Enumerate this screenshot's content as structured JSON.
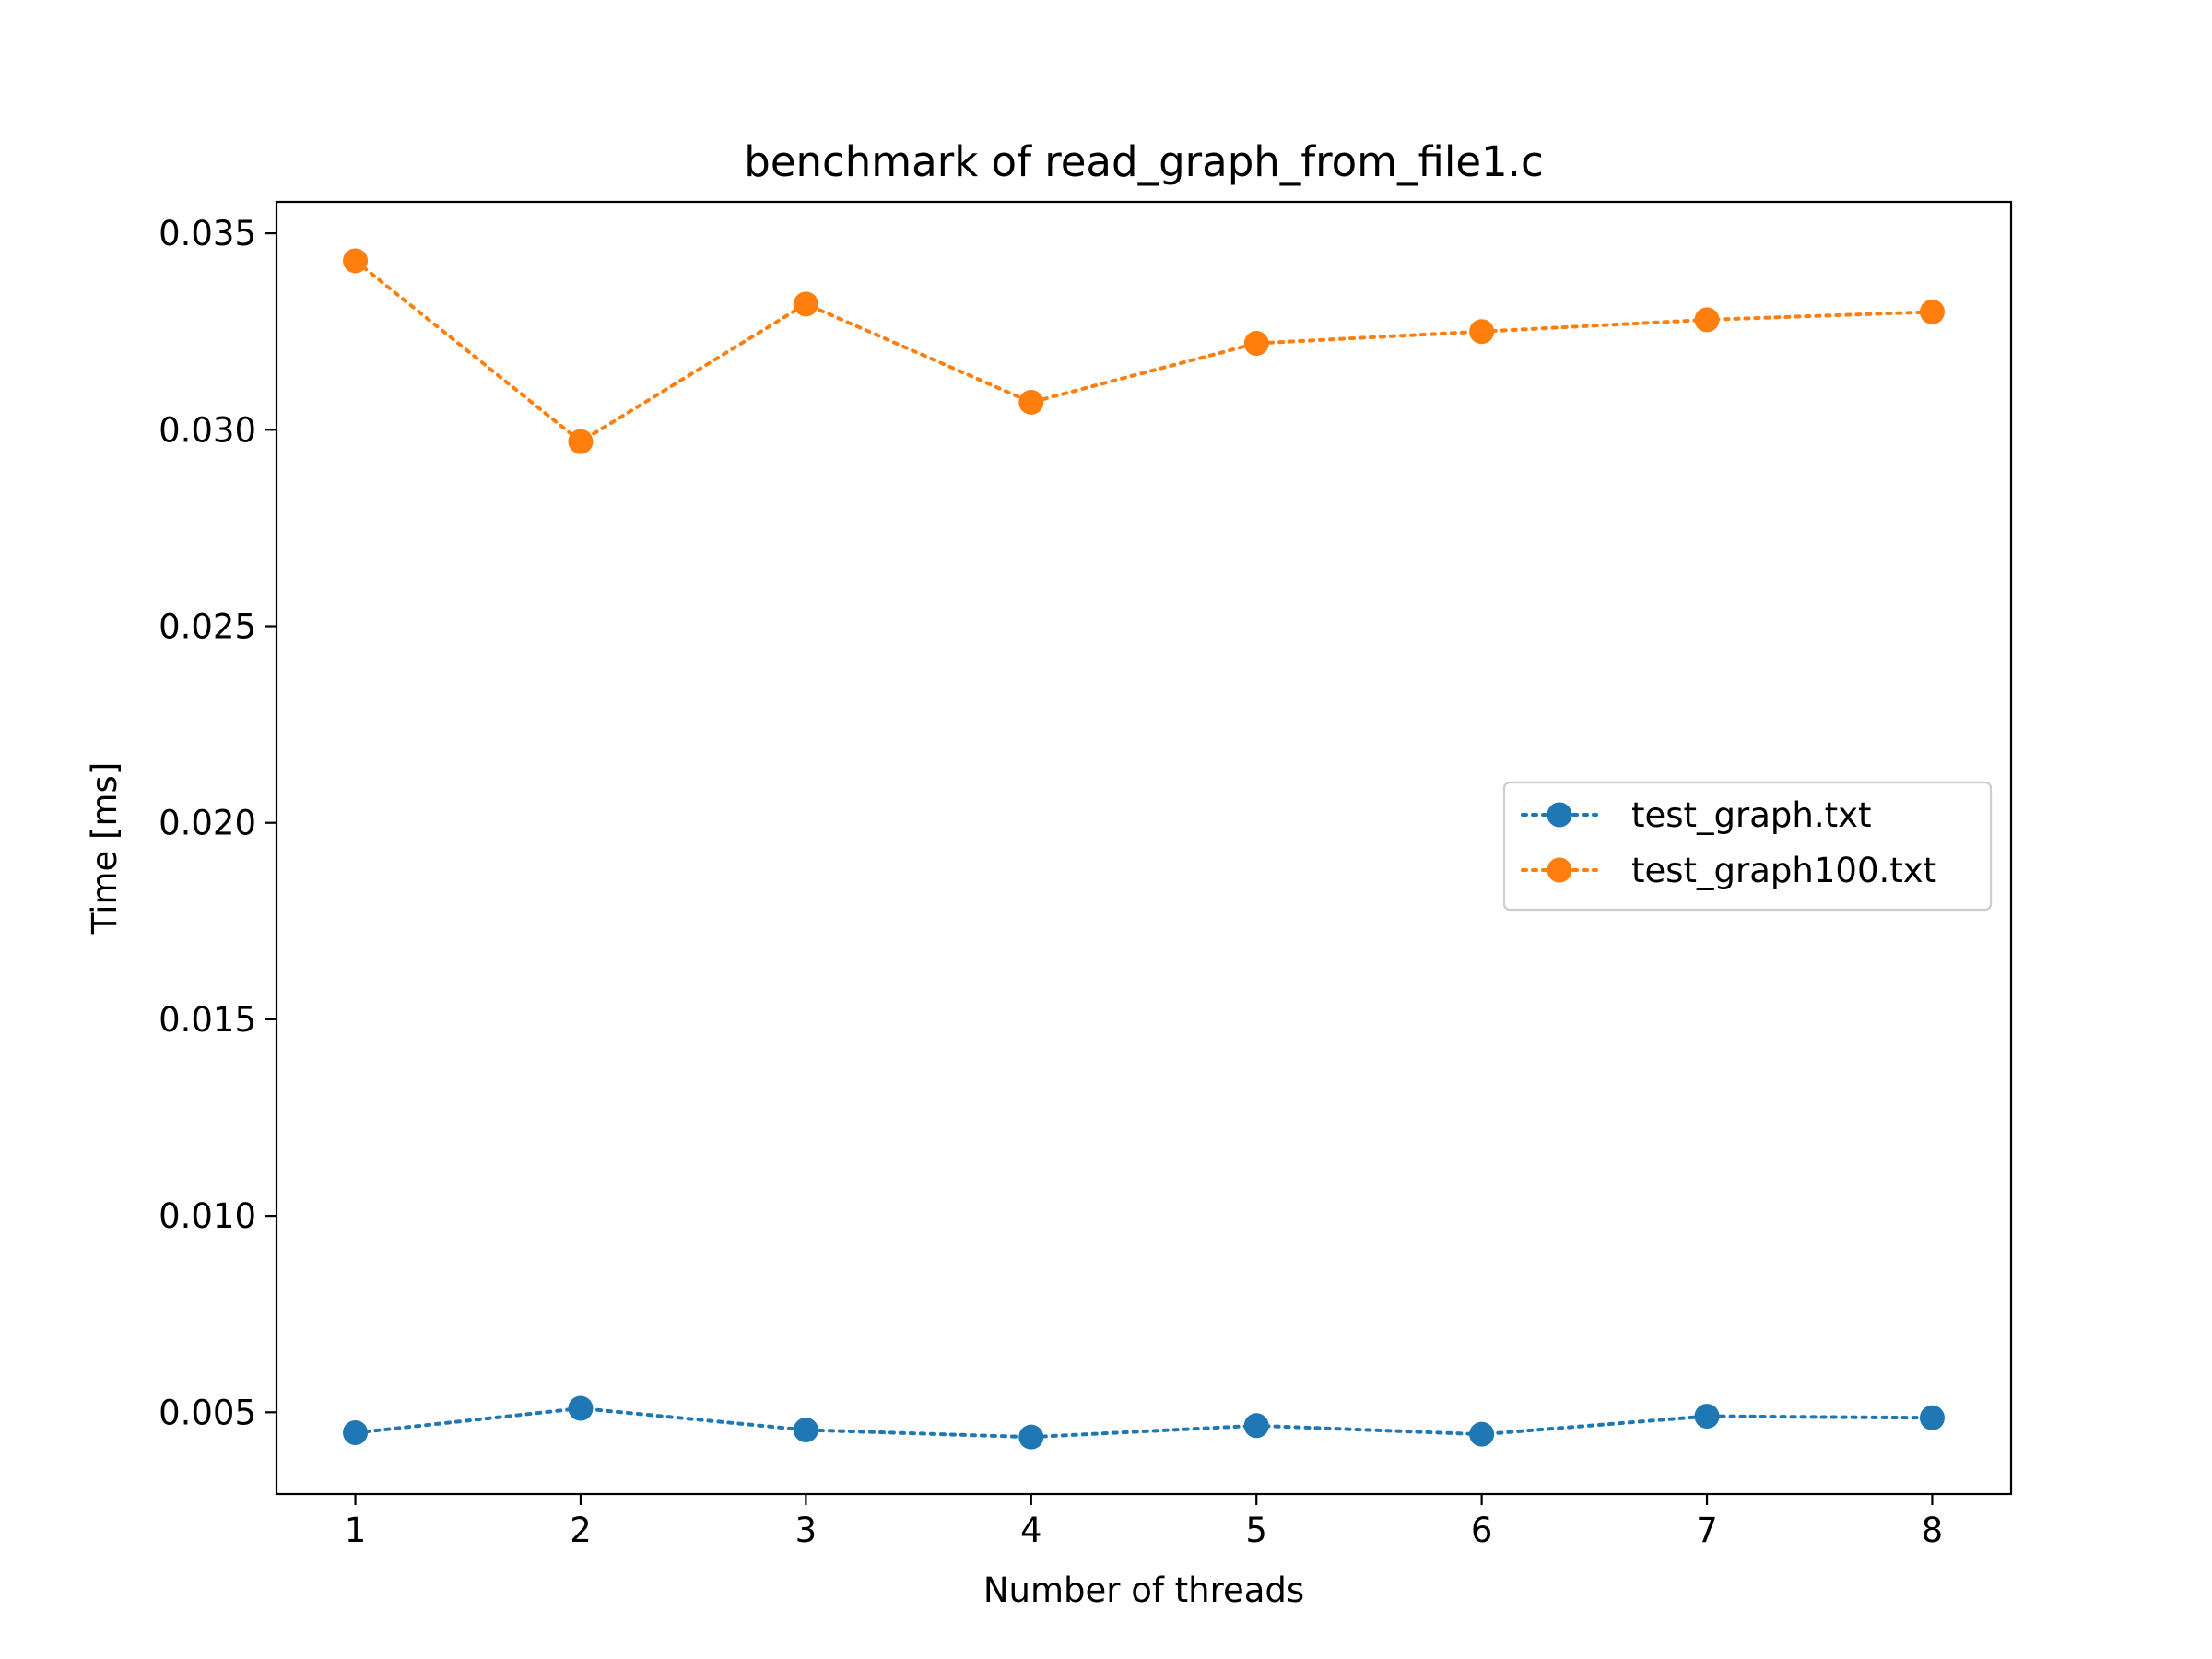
{
  "chart_data": {
    "type": "line",
    "title": "benchmark of read_graph_from_file1.c",
    "xlabel": "Number of threads",
    "ylabel": "Time [ms]",
    "x": [
      1,
      2,
      3,
      4,
      5,
      6,
      7,
      8
    ],
    "xticks": [
      "1",
      "2",
      "3",
      "4",
      "5",
      "6",
      "7",
      "8"
    ],
    "xlim": [
      0.65,
      8.35
    ],
    "yticks": [
      "0.005",
      "0.010",
      "0.015",
      "0.020",
      "0.025",
      "0.030",
      "0.035"
    ],
    "ylim": [
      0.00292,
      0.0358
    ],
    "grid": false,
    "legend_position": "center-right",
    "series": [
      {
        "name": "test_graph.txt",
        "color": "#1f77b4",
        "line_style": "dotted",
        "marker": "circle",
        "values": [
          0.00448,
          0.0051,
          0.00455,
          0.00437,
          0.00466,
          0.00444,
          0.0049,
          0.00486
        ]
      },
      {
        "name": "test_graph100.txt",
        "color": "#ff7f0e",
        "line_style": "dotted",
        "marker": "circle",
        "values": [
          0.0343,
          0.0297,
          0.0332,
          0.0307,
          0.0322,
          0.0325,
          0.0328,
          0.033
        ]
      }
    ]
  }
}
